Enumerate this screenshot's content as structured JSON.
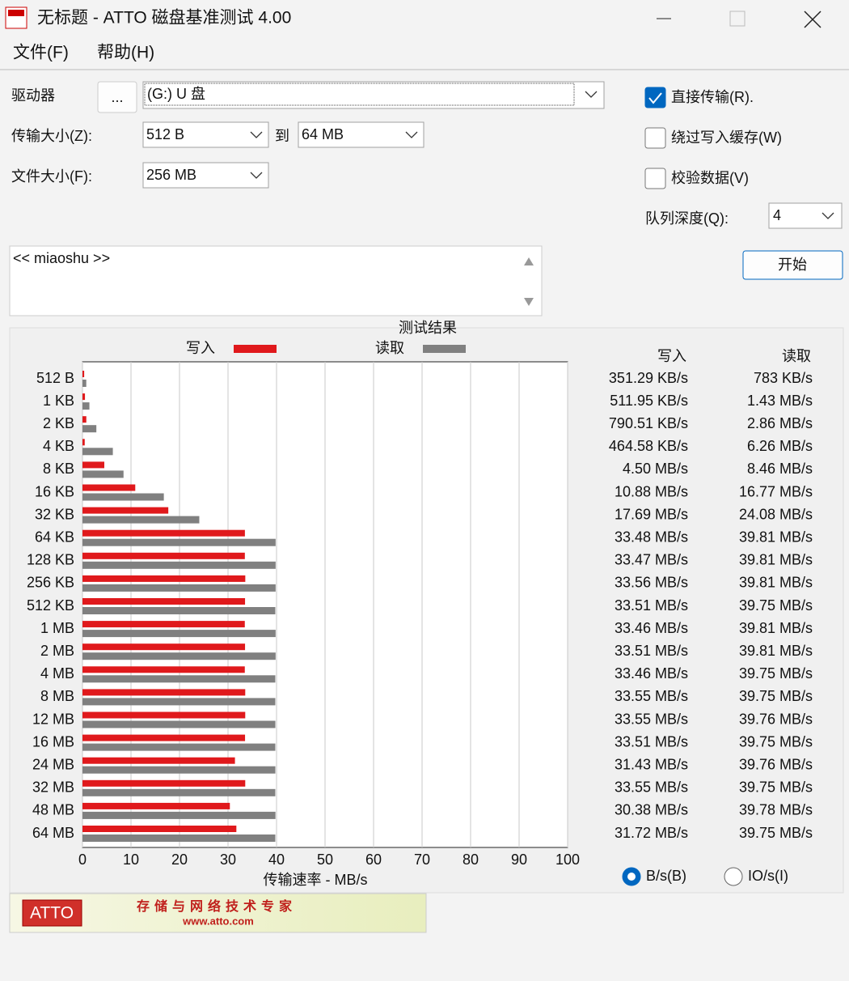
{
  "window": {
    "title": "无标题 - ATTO 磁盘基准测试 4.00"
  },
  "menu": [
    "文件(F)",
    "帮助(H)"
  ],
  "controls": {
    "drive_label": "驱动器",
    "browse_button": "...",
    "drive_value": "(G:) U 盘",
    "transfer_label": "传输大小(Z):",
    "transfer_from": "512 B",
    "to_label": "到",
    "transfer_to": "64 MB",
    "file_size_label": "文件大小(F):",
    "file_size": "256 MB",
    "direct_io": {
      "label": "直接传输(R).",
      "checked": true
    },
    "bypass_cache": {
      "label": "绕过写入缓存(W)",
      "checked": false
    },
    "verify": {
      "label": "校验数据(V)",
      "checked": false
    },
    "queue_label": "队列深度(Q):",
    "queue_value": "4",
    "start_button": "开始",
    "description": "<< miaoshu >>"
  },
  "chart_data": {
    "type": "bar",
    "title": "测试结果",
    "x_label": "传输速率 - MB/s",
    "categories": [
      "512 B",
      "1 KB",
      "2 KB",
      "4 KB",
      "8 KB",
      "16 KB",
      "32 KB",
      "64 KB",
      "128 KB",
      "256 KB",
      "512 KB",
      "1 MB",
      "2 MB",
      "4 MB",
      "8 MB",
      "12 MB",
      "16 MB",
      "24 MB",
      "32 MB",
      "48 MB",
      "64 MB"
    ],
    "series": [
      {
        "name": "写入",
        "color": "#e0191c",
        "values": [
          0.35129,
          0.51195,
          0.79051,
          0.46458,
          4.5,
          10.88,
          17.69,
          33.48,
          33.47,
          33.56,
          33.51,
          33.46,
          33.51,
          33.46,
          33.55,
          33.55,
          33.51,
          31.43,
          33.55,
          30.38,
          31.72
        ],
        "value_labels": [
          "351.29 KB/s",
          "511.95 KB/s",
          "790.51 KB/s",
          "464.58 KB/s",
          "4.50 MB/s",
          "10.88 MB/s",
          "17.69 MB/s",
          "33.48 MB/s",
          "33.47 MB/s",
          "33.56 MB/s",
          "33.51 MB/s",
          "33.46 MB/s",
          "33.51 MB/s",
          "33.46 MB/s",
          "33.55 MB/s",
          "33.55 MB/s",
          "33.51 MB/s",
          "31.43 MB/s",
          "33.55 MB/s",
          "30.38 MB/s",
          "31.72 MB/s"
        ]
      },
      {
        "name": "读取",
        "color": "#808080",
        "values": [
          0.783,
          1.43,
          2.86,
          6.26,
          8.46,
          16.77,
          24.08,
          39.81,
          39.81,
          39.81,
          39.75,
          39.81,
          39.81,
          39.75,
          39.75,
          39.76,
          39.75,
          39.76,
          39.75,
          39.78,
          39.75
        ],
        "value_labels": [
          "783 KB/s",
          "1.43 MB/s",
          "2.86 MB/s",
          "6.26 MB/s",
          "8.46 MB/s",
          "16.77 MB/s",
          "24.08 MB/s",
          "39.81 MB/s",
          "39.81 MB/s",
          "39.81 MB/s",
          "39.75 MB/s",
          "39.81 MB/s",
          "39.81 MB/s",
          "39.75 MB/s",
          "39.75 MB/s",
          "39.76 MB/s",
          "39.75 MB/s",
          "39.76 MB/s",
          "39.75 MB/s",
          "39.78 MB/s",
          "39.75 MB/s"
        ]
      }
    ],
    "xlim": [
      0,
      100
    ],
    "xticks": [
      0,
      10,
      20,
      30,
      40,
      50,
      60,
      70,
      80,
      90,
      100
    ],
    "grid": true
  },
  "units": [
    {
      "label": "B/s(B)",
      "selected": true
    },
    {
      "label": "IO/s(I)",
      "selected": false
    }
  ],
  "banner": {
    "logo": "ATTO",
    "slogan": "存储与网络技术专家",
    "url": "www.atto.com"
  }
}
